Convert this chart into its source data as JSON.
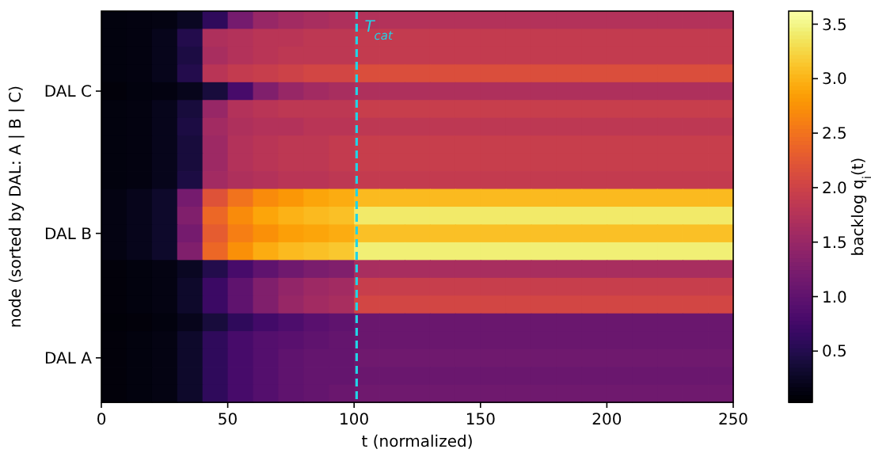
{
  "chart_data": {
    "type": "heatmap",
    "xlabel": "t (normalized)",
    "ylabel": "node (sorted by DAL: A | B | C)",
    "clabel": "backlog q$_{i}$(t)",
    "x": [
      5,
      15,
      25,
      35,
      45,
      55,
      65,
      75,
      85,
      95,
      105,
      115,
      125,
      135,
      145,
      155,
      165,
      175,
      185,
      195,
      205,
      215,
      225,
      235,
      245
    ],
    "xlim": [
      0,
      250
    ],
    "xticks": [
      0,
      50,
      100,
      150,
      200,
      250
    ],
    "y_categories": [
      null,
      null,
      null,
      null,
      "DAL C",
      null,
      null,
      null,
      null,
      null,
      null,
      null,
      "DAL B",
      null,
      null,
      null,
      null,
      null,
      null,
      "DAL A",
      null,
      null
    ],
    "clim": [
      0.03,
      3.62
    ],
    "cticks": [
      {
        "value": 0.5,
        "label": "0.5"
      },
      {
        "value": 1,
        "label": "1.0"
      },
      {
        "value": 1.5,
        "label": "1.5"
      },
      {
        "value": 2,
        "label": "2.0"
      },
      {
        "value": 2.5,
        "label": "2.5"
      },
      {
        "value": 3,
        "label": "3.0"
      },
      {
        "value": 3.5,
        "label": "3.5"
      }
    ],
    "ref_lines": [
      {
        "axis": "x",
        "value": 101,
        "label": "T$_{cat}$",
        "color": "#22d3e6",
        "line_style": "dashed"
      }
    ],
    "cells": [
      [
        0.12,
        0.13,
        0.15,
        0.25,
        0.6,
        1.2,
        1.5,
        1.6,
        1.65,
        1.7,
        1.75,
        1.75,
        1.75,
        1.75,
        1.75,
        1.75,
        1.75,
        1.75,
        1.75,
        1.75,
        1.75,
        1.75,
        1.75,
        1.75,
        1.75
      ],
      [
        0.12,
        0.14,
        0.2,
        0.5,
        1.7,
        1.75,
        1.8,
        1.8,
        1.85,
        1.85,
        1.9,
        1.9,
        1.9,
        1.9,
        1.9,
        1.9,
        1.9,
        1.9,
        1.9,
        1.9,
        1.9,
        1.9,
        1.9,
        1.9,
        1.9
      ],
      [
        0.12,
        0.14,
        0.2,
        0.45,
        1.65,
        1.75,
        1.8,
        1.85,
        1.85,
        1.85,
        1.9,
        1.9,
        1.9,
        1.9,
        1.9,
        1.9,
        1.9,
        1.9,
        1.9,
        1.9,
        1.9,
        1.9,
        1.9,
        1.9,
        1.9
      ],
      [
        0.12,
        0.14,
        0.2,
        0.5,
        1.8,
        1.9,
        1.95,
        2.0,
        2.05,
        2.05,
        2.15,
        2.15,
        2.15,
        2.15,
        2.15,
        2.15,
        2.15,
        2.15,
        2.15,
        2.15,
        2.15,
        2.15,
        2.15,
        2.15,
        2.15
      ],
      [
        0.1,
        0.12,
        0.14,
        0.2,
        0.4,
        0.8,
        1.3,
        1.5,
        1.6,
        1.65,
        1.7,
        1.7,
        1.7,
        1.7,
        1.7,
        1.7,
        1.7,
        1.7,
        1.7,
        1.7,
        1.7,
        1.7,
        1.7,
        1.7,
        1.7
      ],
      [
        0.12,
        0.14,
        0.2,
        0.4,
        1.5,
        1.75,
        1.8,
        1.85,
        1.85,
        1.85,
        1.95,
        1.95,
        1.95,
        1.95,
        1.95,
        1.95,
        1.95,
        1.95,
        1.95,
        1.95,
        1.95,
        1.95,
        1.95,
        1.95,
        1.95
      ],
      [
        0.12,
        0.14,
        0.2,
        0.45,
        1.6,
        1.7,
        1.75,
        1.75,
        1.8,
        1.8,
        1.85,
        1.85,
        1.85,
        1.85,
        1.85,
        1.85,
        1.85,
        1.85,
        1.85,
        1.85,
        1.85,
        1.85,
        1.85,
        1.85,
        1.85
      ],
      [
        0.12,
        0.14,
        0.2,
        0.4,
        1.55,
        1.75,
        1.8,
        1.85,
        1.85,
        1.9,
        1.95,
        1.95,
        1.95,
        1.95,
        1.95,
        1.95,
        1.95,
        1.95,
        1.95,
        1.95,
        1.95,
        1.95,
        1.95,
        1.95,
        1.95
      ],
      [
        0.12,
        0.14,
        0.2,
        0.4,
        1.55,
        1.75,
        1.8,
        1.85,
        1.85,
        1.9,
        1.95,
        1.95,
        1.95,
        1.95,
        1.95,
        1.95,
        1.95,
        1.95,
        1.95,
        1.95,
        1.95,
        1.95,
        1.95,
        1.95,
        1.95
      ],
      [
        0.12,
        0.14,
        0.2,
        0.45,
        1.6,
        1.7,
        1.75,
        1.8,
        1.8,
        1.85,
        1.9,
        1.9,
        1.9,
        1.9,
        1.9,
        1.9,
        1.9,
        1.9,
        1.9,
        1.9,
        1.9,
        1.9,
        1.9,
        1.9,
        1.9
      ],
      [
        0.15,
        0.2,
        0.3,
        1.2,
        2.2,
        2.5,
        2.7,
        2.8,
        2.9,
        2.95,
        3.05,
        3.05,
        3.05,
        3.05,
        3.05,
        3.05,
        3.05,
        3.05,
        3.05,
        3.05,
        3.05,
        3.05,
        3.05,
        3.05,
        3.05
      ],
      [
        0.15,
        0.2,
        0.3,
        1.3,
        2.4,
        2.7,
        2.9,
        3.0,
        3.05,
        3.1,
        3.4,
        3.4,
        3.4,
        3.4,
        3.4,
        3.4,
        3.4,
        3.4,
        3.4,
        3.4,
        3.4,
        3.4,
        3.4,
        3.4,
        3.4
      ],
      [
        0.15,
        0.2,
        0.3,
        1.2,
        2.3,
        2.6,
        2.75,
        2.85,
        2.9,
        2.95,
        3.1,
        3.1,
        3.1,
        3.1,
        3.1,
        3.1,
        3.1,
        3.1,
        3.1,
        3.1,
        3.1,
        3.1,
        3.1,
        3.1,
        3.1
      ],
      [
        0.15,
        0.2,
        0.3,
        1.3,
        2.4,
        2.75,
        2.95,
        3.05,
        3.1,
        3.15,
        3.45,
        3.45,
        3.45,
        3.45,
        3.45,
        3.45,
        3.45,
        3.45,
        3.45,
        3.45,
        3.45,
        3.45,
        3.45,
        3.45,
        3.45
      ],
      [
        0.1,
        0.12,
        0.15,
        0.25,
        0.5,
        0.8,
        1.0,
        1.15,
        1.25,
        1.3,
        1.65,
        1.65,
        1.65,
        1.65,
        1.65,
        1.65,
        1.65,
        1.65,
        1.65,
        1.65,
        1.65,
        1.65,
        1.65,
        1.65,
        1.65
      ],
      [
        0.1,
        0.12,
        0.15,
        0.3,
        0.7,
        1.0,
        1.3,
        1.45,
        1.55,
        1.6,
        1.95,
        1.95,
        1.95,
        1.95,
        1.95,
        1.95,
        1.95,
        1.95,
        1.95,
        1.95,
        1.95,
        1.95,
        1.95,
        1.95,
        1.95
      ],
      [
        0.1,
        0.12,
        0.15,
        0.3,
        0.7,
        1.0,
        1.3,
        1.5,
        1.6,
        1.65,
        2.05,
        2.05,
        2.05,
        2.05,
        2.05,
        2.05,
        2.05,
        2.05,
        2.05,
        2.05,
        2.05,
        2.05,
        2.05,
        2.05,
        2.05
      ],
      [
        0.08,
        0.1,
        0.12,
        0.2,
        0.4,
        0.6,
        0.75,
        0.85,
        0.95,
        1.0,
        1.1,
        1.1,
        1.1,
        1.1,
        1.1,
        1.1,
        1.1,
        1.1,
        1.1,
        1.1,
        1.1,
        1.1,
        1.1,
        1.1,
        1.1
      ],
      [
        0.1,
        0.12,
        0.15,
        0.3,
        0.6,
        0.8,
        0.9,
        0.95,
        1.0,
        1.05,
        1.1,
        1.1,
        1.1,
        1.1,
        1.1,
        1.1,
        1.1,
        1.1,
        1.1,
        1.1,
        1.1,
        1.1,
        1.1,
        1.1,
        1.1
      ],
      [
        0.1,
        0.12,
        0.15,
        0.3,
        0.6,
        0.8,
        0.9,
        1.0,
        1.05,
        1.05,
        1.15,
        1.15,
        1.15,
        1.15,
        1.15,
        1.15,
        1.15,
        1.15,
        1.15,
        1.15,
        1.15,
        1.15,
        1.15,
        1.15,
        1.15
      ],
      [
        0.1,
        0.12,
        0.15,
        0.3,
        0.6,
        0.8,
        0.9,
        1.0,
        1.05,
        1.05,
        1.1,
        1.1,
        1.1,
        1.1,
        1.1,
        1.1,
        1.1,
        1.1,
        1.1,
        1.1,
        1.1,
        1.1,
        1.1,
        1.1,
        1.1
      ],
      [
        0.1,
        0.12,
        0.15,
        0.3,
        0.6,
        0.8,
        0.9,
        1.0,
        1.05,
        1.1,
        1.15,
        1.15,
        1.15,
        1.15,
        1.15,
        1.15,
        1.15,
        1.15,
        1.15,
        1.15,
        1.15,
        1.15,
        1.15,
        1.15,
        1.15
      ]
    ]
  }
}
